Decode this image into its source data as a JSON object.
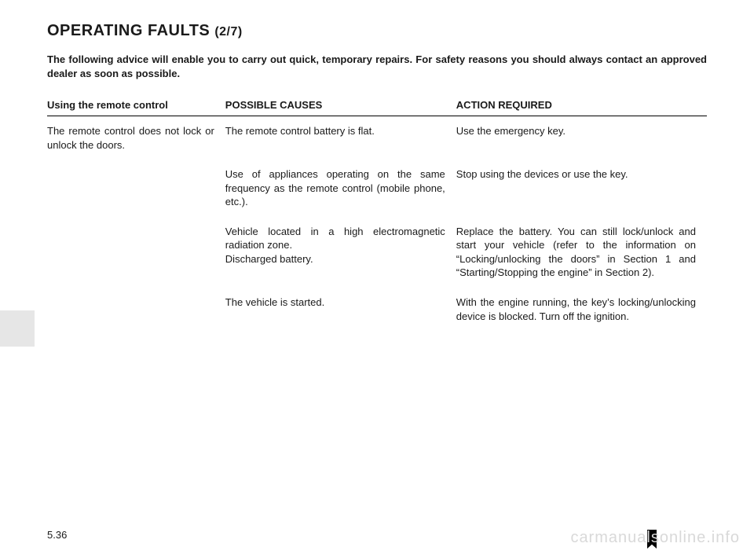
{
  "title_main": "OPERATING FAULTS",
  "title_part": "(2/7)",
  "intro": "The following advice will enable you to carry out quick, temporary repairs. For safety reasons you should always contact an approved dealer as soon as possible.",
  "table": {
    "headers": {
      "col1": "Using the remote control",
      "col2": "POSSIBLE CAUSES",
      "col3": "ACTION REQUIRED"
    },
    "rows": [
      {
        "symptom": "The remote control does not lock or unlock the doors.",
        "cause": "The remote control battery is flat.",
        "action": "Use the emergency key."
      },
      {
        "symptom": "",
        "cause": "Use of appliances operating on the same frequency as the remote control (mobile phone, etc.).",
        "action": "Stop using the devices or use the key."
      },
      {
        "symptom": "",
        "cause": "Vehicle located in a high electromagnetic radiation zone.\nDischarged battery.",
        "action": "Replace the battery. You can still lock/unlock and start your vehicle (refer to the information on “Locking/unlocking the doors” in Section 1 and “Starting/Stopping the engine” in Section 2)."
      },
      {
        "symptom": "",
        "cause": "The vehicle is started.",
        "action": "With the engine running, the key’s locking/unlocking device is blocked. Turn off the ignition."
      }
    ]
  },
  "page_number": "5.36",
  "watermark": "carmanualsonline.info"
}
